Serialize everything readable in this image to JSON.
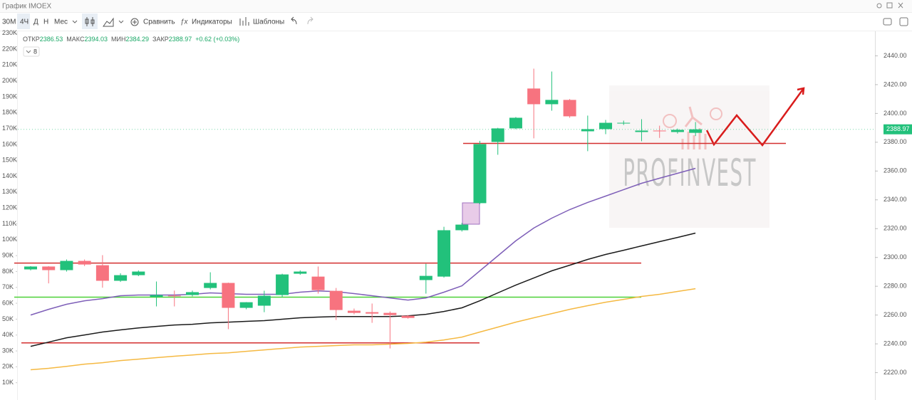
{
  "window": {
    "title": "График IMOEX"
  },
  "toolbar": {
    "intervals": [
      "30М",
      "4Ч",
      "Д",
      "Н",
      "Мес"
    ],
    "compare": "Сравнить",
    "indicators": "Индикаторы",
    "templates": "Шаблоны"
  },
  "chart_data": {
    "type": "candlestick",
    "legend_labels": [
      "ОТКР",
      "МАКС",
      "МИН",
      "ЗАКР"
    ],
    "change_label": "+0.62 (+0.03%)",
    "indicator_count": 8,
    "watermark": "PROFINVEST",
    "categories": [
      null,
      null,
      null,
      null,
      null,
      null,
      null,
      null,
      null,
      null,
      null,
      null,
      null,
      null,
      null,
      null,
      null,
      null,
      null,
      null,
      null,
      null,
      null,
      null,
      null,
      null,
      null,
      null,
      null,
      null,
      null,
      null,
      null,
      null,
      null,
      null,
      null,
      null
    ],
    "open": [
      2291.7,
      2293.7,
      2291.2,
      2297.6,
      2294.6,
      2283.8,
      2287.7,
      2272.6,
      2273.5,
      2273.9,
      2278.8,
      2282.3,
      2265,
      2266.5,
      2273.9,
      2288.7,
      2286.7,
      2276.8,
      2263,
      2262,
      2261.5,
      2259.5,
      2284.3,
      2286.7,
      2318.9,
      2337.7,
      2380.2,
      2389.6,
      2417.3,
      2406.4,
      2409.4,
      2387.6,
      2389.1,
      2393,
      2387.1,
      2388.1,
      2387.1,
      2386.53
    ],
    "high": [
      2294,
      2294,
      2298.6,
      2298.6,
      2301.6,
      2289,
      2291,
      2283.3,
      2277,
      2277,
      2289.7,
      2282.5,
      2269,
      2276.9,
      2288.7,
      2291,
      2293.7,
      2278.8,
      2264.5,
      2268,
      2262.5,
      2260,
      2295.6,
      2321.3,
      2324,
      2381,
      2390,
      2397.5,
      2431.1,
      2429.1,
      2410,
      2398.5,
      2395.5,
      2395,
      2396,
      2391.5,
      2389.5,
      2394.03
    ],
    "low": [
      2291,
      2282,
      2290.2,
      2294,
      2279,
      2283,
      2287,
      2266,
      2266,
      2273,
      2277.8,
      2250.2,
      2264,
      2262,
      2272.4,
      2288,
      2274.9,
      2256.6,
      2260.5,
      2254.6,
      2236.8,
      2257.5,
      2274.9,
      2286,
      2318,
      2337,
      2371.3,
      2389,
      2382.7,
      2401.9,
      2397,
      2373.8,
      2385.6,
      2392,
      2380.7,
      2383,
      2386,
      2384.29
    ],
    "close": [
      2293.7,
      2291.2,
      2297.6,
      2295.1,
      2283.8,
      2287.7,
      2290.2,
      2273.9,
      2273,
      2275.9,
      2282.3,
      2265,
      2268.9,
      2273.4,
      2288.2,
      2290.2,
      2277.3,
      2263.5,
      2261.5,
      2261,
      2260,
      2258,
      2287.2,
      2318.9,
      2322.8,
      2378.7,
      2389.6,
      2397,
      2406.4,
      2409.4,
      2398,
      2389.1,
      2393.5,
      2393.5,
      2388.1,
      2387.6,
      2388.6,
      2388.97
    ],
    "up_color": "#22c17b",
    "down_color": "#f7737f",
    "series": [
      {
        "color": "#7e5fb8",
        "values": [
          2260.0,
          2264.0,
          2267.5,
          2269.9,
          2271.4,
          2273.4,
          2273.9,
          2273.9,
          2273.9,
          2274.4,
          2275.4,
          2274.9,
          2274.4,
          2274.4,
          2274.4,
          2275.9,
          2276.8,
          2276.3,
          2274.9,
          2273.4,
          2271.9,
          2270.4,
          2271.9,
          2275.9,
          2280.3,
          2290.7,
          2301.1,
          2311.5,
          2320.4,
          2327.3,
          2333.2,
          2338.2,
          2342.6,
          2347.1,
          2351.5,
          2355.0,
          2358.4,
          2361.9
        ]
      },
      {
        "color": "#1a1a1a",
        "values": [
          2238.3,
          2241.2,
          2244.2,
          2246.2,
          2248.2,
          2249.7,
          2251.1,
          2252.1,
          2253.1,
          2253.6,
          2254.6,
          2255.1,
          2255.6,
          2256.1,
          2257.1,
          2258.1,
          2258.6,
          2259.0,
          2259.0,
          2259.0,
          2259.0,
          2259.5,
          2260.5,
          2262.5,
          2265.0,
          2269.9,
          2275.4,
          2280.8,
          2285.7,
          2290.7,
          2294.6,
          2298.6,
          2302.1,
          2305.0,
          2308.0,
          2311.0,
          2313.9,
          2316.9
        ]
      },
      {
        "color": "#f5b942",
        "values": [
          2222.0,
          2223.0,
          2224.4,
          2225.9,
          2226.9,
          2228.4,
          2229.4,
          2230.4,
          2231.4,
          2232.3,
          2233.3,
          2233.8,
          2234.8,
          2235.8,
          2236.8,
          2237.8,
          2238.3,
          2238.8,
          2239.3,
          2239.3,
          2239.8,
          2240.3,
          2241.2,
          2242.7,
          2244.7,
          2248.2,
          2251.6,
          2255.1,
          2258.1,
          2261.0,
          2264.0,
          2266.5,
          2268.9,
          2270.9,
          2272.9,
          2274.4,
          2276.4,
          2278.3
        ]
      }
    ],
    "levels": [
      {
        "value": 2296.1,
        "color": "#d32f2f"
      },
      {
        "value": 2272.4,
        "color": "#4cd137"
      },
      {
        "value": 2240.7,
        "color": "#d32f2f"
      },
      {
        "value": 2379.2,
        "color": "#d32f2f"
      }
    ],
    "ylim": [
      2202,
      2459
    ],
    "yticks": [
      {
        "value": 2220,
        "label": "2220.00"
      },
      {
        "value": 2240,
        "label": "2240.00"
      },
      {
        "value": 2260,
        "label": "2260.00"
      },
      {
        "value": 2280,
        "label": "2280.00"
      },
      {
        "value": 2300,
        "label": "2300.00"
      },
      {
        "value": 2320,
        "label": "2320.00"
      },
      {
        "value": 2340,
        "label": "2340.00"
      },
      {
        "value": 2360,
        "label": "2360.00"
      },
      {
        "value": 2380,
        "label": "2380.00"
      },
      {
        "value": 2400,
        "label": "2400.00"
      },
      {
        "value": 2420,
        "label": "2420.00"
      },
      {
        "value": 2440,
        "label": "2440.00"
      }
    ],
    "y2lim": [
      0,
      233000
    ],
    "y2ticks": [
      {
        "value": 10000,
        "label": "10K"
      },
      {
        "value": 20000,
        "label": "20K"
      },
      {
        "value": 30000,
        "label": "30K"
      },
      {
        "value": 40000,
        "label": "40K"
      },
      {
        "value": 50000,
        "label": "50K"
      },
      {
        "value": 60000,
        "label": "60K"
      },
      {
        "value": 70000,
        "label": "70K"
      },
      {
        "value": 80000,
        "label": "80K"
      },
      {
        "value": 90000,
        "label": "90K"
      },
      {
        "value": 100000,
        "label": "100K"
      },
      {
        "value": 110000,
        "label": "110K"
      },
      {
        "value": 120000,
        "label": "120K"
      },
      {
        "value": 130000,
        "label": "130K"
      },
      {
        "value": 140000,
        "label": "140K"
      },
      {
        "value": 150000,
        "label": "150K"
      },
      {
        "value": 160000,
        "label": "160K"
      },
      {
        "value": 170000,
        "label": "170K"
      },
      {
        "value": 180000,
        "label": "180K"
      },
      {
        "value": 190000,
        "label": "190K"
      },
      {
        "value": 200000,
        "label": "200K"
      },
      {
        "value": 210000,
        "label": "210K"
      },
      {
        "value": 220000,
        "label": "220K"
      },
      {
        "value": 230000,
        "label": "230K"
      }
    ],
    "grid": false
  }
}
